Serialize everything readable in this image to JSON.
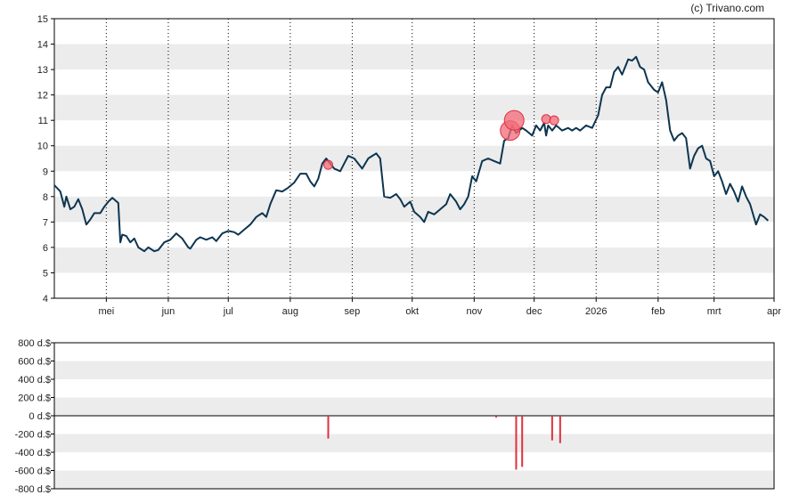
{
  "credit": "(c) Trivano.com",
  "colors": {
    "line": "#0d3550",
    "band": "#ececec",
    "bubble_fill": "#f26b78",
    "bubble_stroke": "#e0303f",
    "bar": "#e0303f",
    "axis": "#000000"
  },
  "chart_data": [
    {
      "type": "line",
      "title": "",
      "xlabel": "",
      "ylabel": "",
      "ylim": [
        4,
        15
      ],
      "yticks": [
        "4",
        "5",
        "6",
        "7",
        "8",
        "9",
        "10",
        "11",
        "12",
        "13",
        "14",
        "15"
      ],
      "grid": "alternating horizontal bands, dotted vertical month lines",
      "x_tick_labels": [
        "mei",
        "jun",
        "jul",
        "aug",
        "sep",
        "okt",
        "nov",
        "dec",
        "2026",
        "feb",
        "mrt",
        "apr"
      ],
      "x_start": "2025-04-05",
      "series": [
        {
          "values": [
            [
              "2025-04-05",
              8.45
            ],
            [
              "2025-04-08",
              8.2
            ],
            [
              "2025-04-10",
              7.6
            ],
            [
              "2025-04-11",
              8.0
            ],
            [
              "2025-04-13",
              7.5
            ],
            [
              "2025-04-15",
              7.6
            ],
            [
              "2025-04-17",
              7.9
            ],
            [
              "2025-04-19",
              7.5
            ],
            [
              "2025-04-21",
              6.9
            ],
            [
              "2025-04-23",
              7.1
            ],
            [
              "2025-04-25",
              7.35
            ],
            [
              "2025-04-28",
              7.35
            ],
            [
              "2025-04-30",
              7.6
            ],
            [
              "2025-05-02",
              7.8
            ],
            [
              "2025-05-04",
              7.95
            ],
            [
              "2025-05-07",
              7.75
            ],
            [
              "2025-05-08",
              6.2
            ],
            [
              "2025-05-09",
              6.5
            ],
            [
              "2025-05-11",
              6.45
            ],
            [
              "2025-05-13",
              6.2
            ],
            [
              "2025-05-15",
              6.35
            ],
            [
              "2025-05-17",
              6.0
            ],
            [
              "2025-05-20",
              5.85
            ],
            [
              "2025-05-22",
              6.0
            ],
            [
              "2025-05-25",
              5.85
            ],
            [
              "2025-05-27",
              5.9
            ],
            [
              "2025-05-30",
              6.2
            ],
            [
              "2025-06-02",
              6.3
            ],
            [
              "2025-06-05",
              6.55
            ],
            [
              "2025-06-08",
              6.35
            ],
            [
              "2025-06-11",
              6.0
            ],
            [
              "2025-06-12",
              5.95
            ],
            [
              "2025-06-15",
              6.3
            ],
            [
              "2025-06-17",
              6.4
            ],
            [
              "2025-06-20",
              6.3
            ],
            [
              "2025-06-23",
              6.4
            ],
            [
              "2025-06-25",
              6.25
            ],
            [
              "2025-06-28",
              6.55
            ],
            [
              "2025-07-01",
              6.65
            ],
            [
              "2025-07-04",
              6.6
            ],
            [
              "2025-07-06",
              6.5
            ],
            [
              "2025-07-09",
              6.7
            ],
            [
              "2025-07-12",
              6.9
            ],
            [
              "2025-07-15",
              7.2
            ],
            [
              "2025-07-18",
              7.35
            ],
            [
              "2025-07-20",
              7.2
            ],
            [
              "2025-07-22",
              7.7
            ],
            [
              "2025-07-25",
              8.25
            ],
            [
              "2025-07-28",
              8.2
            ],
            [
              "2025-07-31",
              8.35
            ],
            [
              "2025-08-03",
              8.55
            ],
            [
              "2025-08-06",
              8.9
            ],
            [
              "2025-08-09",
              8.9
            ],
            [
              "2025-08-11",
              8.6
            ],
            [
              "2025-08-13",
              8.4
            ],
            [
              "2025-08-15",
              8.7
            ],
            [
              "2025-08-17",
              9.3
            ],
            [
              "2025-08-19",
              9.5
            ],
            [
              "2025-08-21",
              9.3
            ],
            [
              "2025-08-23",
              9.1
            ],
            [
              "2025-08-26",
              9.0
            ],
            [
              "2025-08-28",
              9.3
            ],
            [
              "2025-08-30",
              9.6
            ],
            [
              "2025-09-02",
              9.5
            ],
            [
              "2025-09-04",
              9.3
            ],
            [
              "2025-09-06",
              9.1
            ],
            [
              "2025-09-09",
              9.5
            ],
            [
              "2025-09-11",
              9.6
            ],
            [
              "2025-09-13",
              9.7
            ],
            [
              "2025-09-15",
              9.5
            ],
            [
              "2025-09-17",
              8.0
            ],
            [
              "2025-09-20",
              7.95
            ],
            [
              "2025-09-23",
              8.1
            ],
            [
              "2025-09-25",
              7.9
            ],
            [
              "2025-09-27",
              7.6
            ],
            [
              "2025-09-30",
              7.8
            ],
            [
              "2025-10-02",
              7.4
            ],
            [
              "2025-10-05",
              7.2
            ],
            [
              "2025-10-07",
              7.0
            ],
            [
              "2025-10-09",
              7.4
            ],
            [
              "2025-10-12",
              7.3
            ],
            [
              "2025-10-15",
              7.5
            ],
            [
              "2025-10-18",
              7.7
            ],
            [
              "2025-10-20",
              8.1
            ],
            [
              "2025-10-23",
              7.8
            ],
            [
              "2025-10-25",
              7.5
            ],
            [
              "2025-10-27",
              7.7
            ],
            [
              "2025-10-29",
              8.0
            ],
            [
              "2025-10-31",
              8.8
            ],
            [
              "2025-11-02",
              8.6
            ],
            [
              "2025-11-05",
              9.4
            ],
            [
              "2025-11-08",
              9.5
            ],
            [
              "2025-11-11",
              9.4
            ],
            [
              "2025-11-14",
              9.3
            ],
            [
              "2025-11-16",
              10.2
            ],
            [
              "2025-11-18",
              10.3
            ],
            [
              "2025-11-20",
              10.8
            ],
            [
              "2025-11-22",
              10.5
            ],
            [
              "2025-11-25",
              10.7
            ],
            [
              "2025-11-27",
              10.6
            ],
            [
              "2025-11-30",
              10.4
            ],
            [
              "2025-12-02",
              10.8
            ],
            [
              "2025-12-04",
              10.6
            ],
            [
              "2025-12-06",
              10.9
            ],
            [
              "2025-12-07",
              10.4
            ],
            [
              "2025-12-08",
              10.8
            ],
            [
              "2025-12-10",
              10.6
            ],
            [
              "2025-12-12",
              10.8
            ],
            [
              "2025-12-15",
              10.6
            ],
            [
              "2025-12-18",
              10.7
            ],
            [
              "2025-12-20",
              10.6
            ],
            [
              "2025-12-22",
              10.7
            ],
            [
              "2025-12-24",
              10.6
            ],
            [
              "2025-12-27",
              10.8
            ],
            [
              "2025-12-30",
              10.7
            ],
            [
              "2026-01-02",
              11.2
            ],
            [
              "2026-01-04",
              12.0
            ],
            [
              "2026-01-06",
              12.3
            ],
            [
              "2026-01-08",
              12.3
            ],
            [
              "2026-01-10",
              12.9
            ],
            [
              "2026-01-12",
              13.1
            ],
            [
              "2026-01-14",
              12.8
            ],
            [
              "2026-01-17",
              13.4
            ],
            [
              "2026-01-19",
              13.35
            ],
            [
              "2026-01-21",
              13.5
            ],
            [
              "2026-01-23",
              13.1
            ],
            [
              "2026-01-25",
              13.0
            ],
            [
              "2026-01-27",
              12.5
            ],
            [
              "2026-01-30",
              12.2
            ],
            [
              "2026-02-01",
              12.1
            ],
            [
              "2026-02-03",
              12.5
            ],
            [
              "2026-02-05",
              11.8
            ],
            [
              "2026-02-07",
              10.6
            ],
            [
              "2026-02-09",
              10.2
            ],
            [
              "2026-02-11",
              10.4
            ],
            [
              "2026-02-13",
              10.5
            ],
            [
              "2026-02-15",
              10.3
            ],
            [
              "2026-02-17",
              9.1
            ],
            [
              "2026-02-19",
              9.6
            ],
            [
              "2026-02-21",
              9.9
            ],
            [
              "2026-02-23",
              10.0
            ],
            [
              "2026-02-25",
              9.5
            ],
            [
              "2026-02-27",
              9.4
            ],
            [
              "2026-03-01",
              8.8
            ],
            [
              "2026-03-03",
              9.0
            ],
            [
              "2026-03-05",
              8.6
            ],
            [
              "2026-03-07",
              8.1
            ],
            [
              "2026-03-09",
              8.5
            ],
            [
              "2026-03-11",
              8.2
            ],
            [
              "2026-03-13",
              7.8
            ],
            [
              "2026-03-15",
              8.4
            ],
            [
              "2026-03-17",
              8.0
            ],
            [
              "2026-03-19",
              7.7
            ],
            [
              "2026-03-22",
              6.9
            ],
            [
              "2026-03-24",
              7.3
            ],
            [
              "2026-03-26",
              7.2
            ],
            [
              "2026-03-28",
              7.05
            ]
          ]
        }
      ],
      "markers": [
        {
          "x": "2025-08-20",
          "y": 9.25,
          "size": "small"
        },
        {
          "x": "2025-11-19",
          "y": 10.6,
          "size": "large"
        },
        {
          "x": "2025-11-21",
          "y": 11.0,
          "size": "large"
        },
        {
          "x": "2025-12-07",
          "y": 11.05,
          "size": "small"
        },
        {
          "x": "2025-12-11",
          "y": 11.0,
          "size": "small"
        }
      ]
    },
    {
      "type": "bar",
      "title": "",
      "xlabel": "",
      "ylabel": "",
      "ylim": [
        -800,
        800
      ],
      "yticks": [
        "800 d.$",
        "600 d.$",
        "400 d.$",
        "200 d.$",
        "0 d.$",
        "-200 d.$",
        "-400 d.$",
        "-600 d.$",
        "-800 d.$"
      ],
      "bars": [
        {
          "x": "2025-08-20",
          "value": -250
        },
        {
          "x": "2025-11-12",
          "value": -20
        },
        {
          "x": "2025-11-22",
          "value": -590
        },
        {
          "x": "2025-11-25",
          "value": -560
        },
        {
          "x": "2025-12-10",
          "value": -270
        },
        {
          "x": "2025-12-14",
          "value": -300
        }
      ]
    }
  ]
}
